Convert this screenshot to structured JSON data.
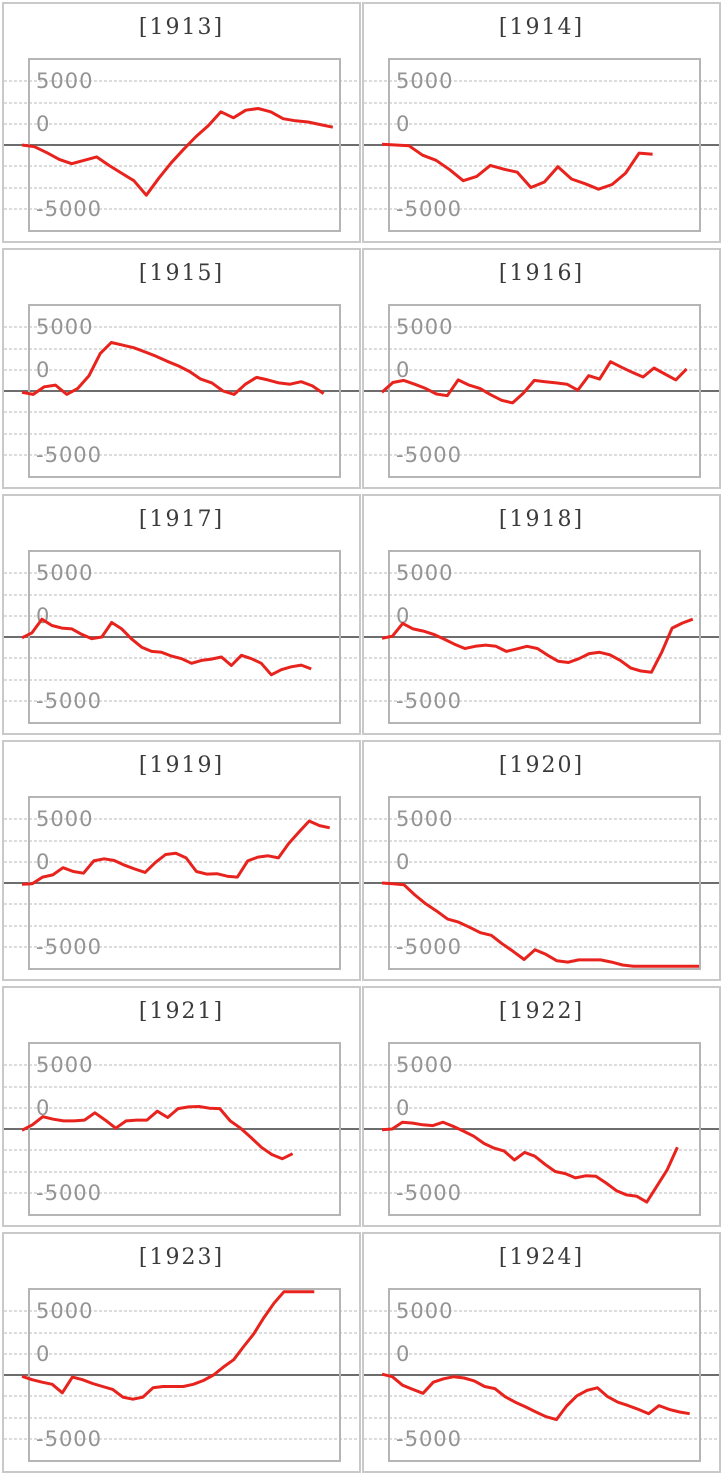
{
  "page": {
    "background": "#ffffff"
  },
  "axis": {
    "tick_labels": [
      "5000",
      "0",
      "-5000"
    ],
    "tick_color": "#949494",
    "gridline_color": "#dcdcdc",
    "zero_line_color": "#6d6d6d",
    "plot_border_color": "#b5b5b5",
    "cell_border_color": "#c9c9c9"
  },
  "chart_data": {
    "type": "line",
    "layout": "small-multiples, 2 columns x 6 rows, shared y scale",
    "line_color": "#e8231d",
    "ylim": [
      -10000,
      10000
    ],
    "y_gridline_step": 2500,
    "y_ticks_shown": [
      5000,
      0,
      -5000
    ],
    "grid": "dotted horizontal gridlines, solid dark rule at 0 spanning full cell width",
    "clipping": "series clipped at plot top/bottom edge (1920 bottom, 1923 top)",
    "facets": [
      {
        "title": "[1913]",
        "year": 1913,
        "end_frac": 0.98,
        "values": [
          0,
          -200,
          -900,
          -1700,
          -2200,
          -1800,
          -1400,
          -2400,
          -3300,
          -4200,
          -5900,
          -3900,
          -2100,
          -500,
          1000,
          2300,
          3900,
          3200,
          4100,
          4300,
          3900,
          3100,
          2850,
          2700,
          2400,
          2100
        ]
      },
      {
        "title": "[1914]",
        "year": 1914,
        "end_frac": 0.85,
        "values": [
          100,
          0,
          -100,
          -1200,
          -1800,
          -2900,
          -4200,
          -3700,
          -2400,
          -2850,
          -3200,
          -5000,
          -4350,
          -2550,
          -4000,
          -4550,
          -5200,
          -4650,
          -3300,
          -950,
          -1100
        ]
      },
      {
        "title": "[1915]",
        "year": 1915,
        "end_frac": 0.95,
        "values": [
          -150,
          -400,
          500,
          700,
          -400,
          300,
          1800,
          4400,
          5700,
          5400,
          5100,
          4600,
          4100,
          3500,
          2950,
          2300,
          1400,
          950,
          0,
          -400,
          800,
          1600,
          1300,
          950,
          800,
          1100,
          600,
          -300
        ]
      },
      {
        "title": "[1916]",
        "year": 1916,
        "end_frac": 0.96,
        "values": [
          -150,
          1000,
          1250,
          800,
          300,
          -350,
          -550,
          1300,
          700,
          300,
          -450,
          -1100,
          -1400,
          -250,
          1250,
          1100,
          950,
          800,
          100,
          1800,
          1400,
          3450,
          2800,
          2200,
          1650,
          2700,
          2000,
          1300,
          2600
        ]
      },
      {
        "title": "[1917]",
        "year": 1917,
        "end_frac": 0.91,
        "values": [
          -100,
          500,
          2100,
          1350,
          1050,
          950,
          300,
          -200,
          0,
          1700,
          950,
          -250,
          -1200,
          -1700,
          -1800,
          -2250,
          -2550,
          -3100,
          -2750,
          -2600,
          -2350,
          -3350,
          -2150,
          -2550,
          -3100,
          -4450,
          -3850,
          -3500,
          -3300,
          -3750
        ]
      },
      {
        "title": "[1918]",
        "year": 1918,
        "end_frac": 0.98,
        "values": [
          -150,
          100,
          1600,
          950,
          700,
          300,
          -250,
          -850,
          -1350,
          -1100,
          -950,
          -1100,
          -1700,
          -1400,
          -1100,
          -1350,
          -2150,
          -2850,
          -3000,
          -2550,
          -1950,
          -1800,
          -2100,
          -2750,
          -3650,
          -4000,
          -4150,
          -1800,
          1050,
          1650,
          2100
        ]
      },
      {
        "title": "[1919]",
        "year": 1919,
        "end_frac": 0.97,
        "values": [
          -150,
          -100,
          700,
          950,
          1800,
          1350,
          1150,
          2600,
          2850,
          2650,
          2100,
          1650,
          1250,
          2400,
          3350,
          3500,
          2950,
          1350,
          1050,
          1100,
          800,
          700,
          2600,
          3050,
          3200,
          2950,
          4650,
          6000,
          7300,
          6750,
          6500
        ]
      },
      {
        "title": "[1920]",
        "year": 1920,
        "end_frac": 1.0,
        "values": [
          0,
          -100,
          -200,
          -1400,
          -2450,
          -3300,
          -4250,
          -4600,
          -5200,
          -5850,
          -6150,
          -7150,
          -8050,
          -9000,
          -7850,
          -8400,
          -9150,
          -9300,
          -9050,
          -9050,
          -9050,
          -9300,
          -9650,
          -9800,
          -9800,
          -9800,
          -9800,
          -9800,
          -9800,
          -9800
        ]
      },
      {
        "title": "[1921]",
        "year": 1921,
        "end_frac": 0.85,
        "values": [
          -150,
          500,
          1450,
          1150,
          950,
          950,
          1050,
          1900,
          1050,
          100,
          950,
          1050,
          1050,
          2100,
          1350,
          2400,
          2600,
          2650,
          2450,
          2400,
          950,
          100,
          -1000,
          -2150,
          -3000,
          -3500,
          -2900
        ]
      },
      {
        "title": "[1922]",
        "year": 1922,
        "end_frac": 0.93,
        "values": [
          -100,
          0,
          800,
          700,
          500,
          400,
          800,
          300,
          -250,
          -850,
          -1700,
          -2250,
          -2600,
          -3650,
          -2750,
          -3200,
          -4150,
          -5000,
          -5250,
          -5750,
          -5500,
          -5550,
          -6350,
          -7250,
          -7750,
          -7900,
          -8600,
          -6700,
          -4800,
          -2150
        ]
      },
      {
        "title": "[1923]",
        "year": 1923,
        "end_frac": 0.92,
        "values": [
          -150,
          -550,
          -850,
          -1100,
          -2100,
          -250,
          -550,
          -1000,
          -1350,
          -1700,
          -2600,
          -2850,
          -2600,
          -1500,
          -1350,
          -1350,
          -1350,
          -1100,
          -650,
          0,
          950,
          1800,
          3350,
          4850,
          6750,
          8450,
          9800,
          9800,
          9800,
          9800
        ]
      },
      {
        "title": "[1924]",
        "year": 1924,
        "end_frac": 0.97,
        "values": [
          100,
          -200,
          -1200,
          -1700,
          -2150,
          -850,
          -450,
          -200,
          -350,
          -700,
          -1350,
          -1600,
          -2550,
          -3200,
          -3750,
          -4350,
          -4900,
          -5250,
          -3650,
          -2450,
          -1800,
          -1500,
          -2550,
          -3200,
          -3600,
          -4050,
          -4550,
          -3600,
          -4050,
          -4350,
          -4550
        ]
      }
    ]
  }
}
